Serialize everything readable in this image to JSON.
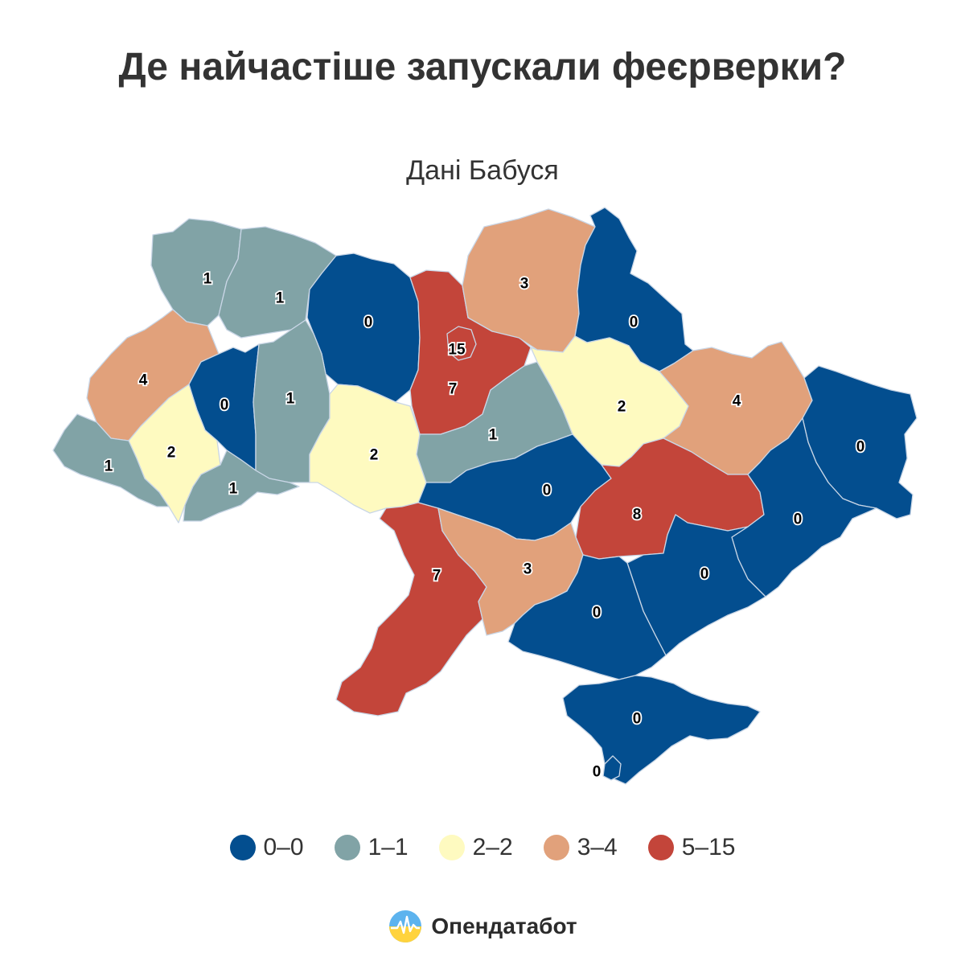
{
  "title": "Де найчастіше запускали феєрверки?",
  "subtitle": "Дані Бабуся",
  "colors": {
    "c0": "#034e8f",
    "c1": "#81a3a6",
    "c2": "#fefac0",
    "c3": "#e1a17b",
    "c5": "#c3453a",
    "border": "#c9d6e6"
  },
  "legend": [
    {
      "label": "0–0",
      "color": "#034e8f"
    },
    {
      "label": "1–1",
      "color": "#81a3a6"
    },
    {
      "label": "2–2",
      "color": "#fefac0"
    },
    {
      "label": "3–4",
      "color": "#e1a17b"
    },
    {
      "label": "5–15",
      "color": "#c3453a"
    }
  ],
  "regions": {
    "volyn": "1",
    "rivne": "1",
    "zhytomyr": "0",
    "kyiv_oblast": "7",
    "kyiv_city": "15",
    "chernihiv": "3",
    "sumy": "0",
    "lviv": "4",
    "ternopil": "0",
    "khmelnytskyi": "1",
    "ivano_frankivsk": "2",
    "zakarpattia": "1",
    "chernivtsi": "1",
    "vinnytsia": "2",
    "cherkasy": "1",
    "poltava": "2",
    "kharkiv": "4",
    "kirovohrad": "0",
    "dnipropetrovsk": "8",
    "luhansk": "0",
    "donetsk": "0",
    "zaporizhzhia": "0",
    "odesa": "7",
    "mykolaiv": "3",
    "kherson": "0",
    "crimea": "0",
    "sevastopol": "0"
  },
  "brand": {
    "name": "Опендатабот",
    "logo_icon": "sun-over-waveform-icon"
  }
}
